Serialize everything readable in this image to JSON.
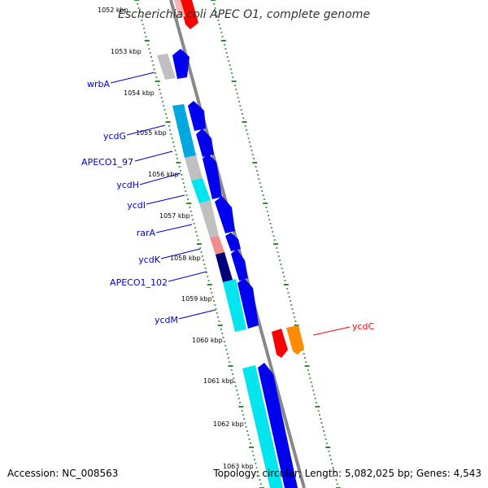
{
  "title": "Escherichia coli APEC O1, complete genome",
  "footer": {
    "accession": "Accession: NC_008563",
    "summary": "Topology: circular; Length: 5,082,025 bp; Genes: 4,543"
  },
  "scale_labels": [
    "1052 kbp",
    "1053 kbp",
    "1054 kbp",
    "1055 kbp",
    "1056 kbp",
    "1057 kbp",
    "1058 kbp",
    "1059 kbp",
    "1060 kbp",
    "1061 kbp",
    "1062 kbp",
    "1063 kbp"
  ],
  "gene_labels": {
    "wrbA": "wrbA",
    "ycdG": "ycdG",
    "APECO1_97": "APECO1_97",
    "ycdH": "ycdH",
    "ycdI": "ycdI",
    "rarA": "rarA",
    "ycdK": "ycdK",
    "APECO1_102": "APECO1_102",
    "ycdM": "ycdM",
    "ycdC": "ycdC"
  },
  "colors": {
    "backbone": "#888888",
    "tick": "#2e8b2e",
    "forward_label": "#0000cc",
    "reverse_label": "#ff0000",
    "blue": "#0000ee",
    "cyan": "#00e5ee",
    "deep_sky": "#00a8e0",
    "gray": "#c0c0c0",
    "pink": "#f08c8c",
    "navy": "#00007a",
    "red": "#ff0000",
    "orange": "#ff8c00"
  }
}
